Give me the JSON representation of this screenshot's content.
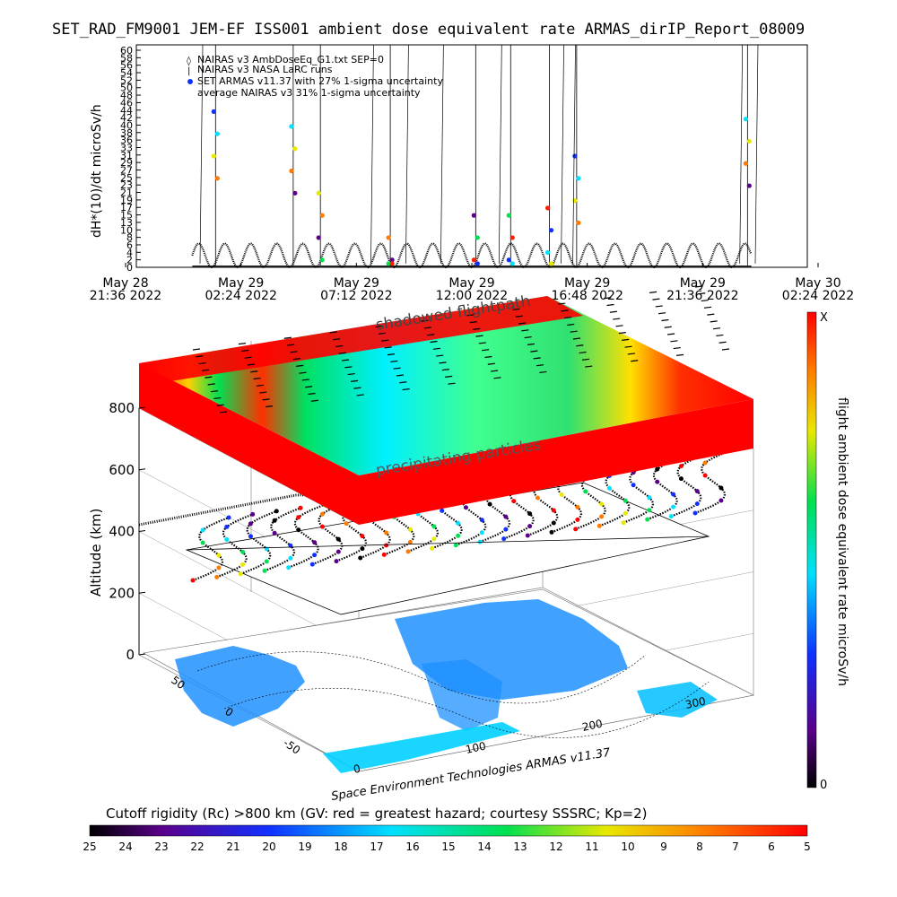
{
  "title": "SET_RAD_FM9001   JEM-EF ISS001 ambient dose equivalent rate ARMAS_dirIP_Report_08009",
  "timeseries": {
    "ylabel": "dH*(10)/dt microSv/h",
    "yticks": [
      "0",
      "2",
      "4",
      "6",
      "8",
      "10",
      "13",
      "15",
      "17",
      "19",
      "21",
      "23",
      "25",
      "27",
      "29",
      "31",
      "33",
      "36",
      "38",
      "40",
      "42",
      "44",
      "46",
      "48",
      "50",
      "52",
      "54",
      "56",
      "58",
      "60"
    ],
    "xticks": [
      {
        "l1": "May 28",
        "l2": "21:36 2022"
      },
      {
        "l1": "May 29",
        "l2": "02:24 2022"
      },
      {
        "l1": "May 29",
        "l2": "07:12 2022"
      },
      {
        "l1": "May 29",
        "l2": "12:00 2022"
      },
      {
        "l1": "May 29",
        "l2": "16:48 2022"
      },
      {
        "l1": "May 29",
        "l2": "21:36 2022"
      },
      {
        "l1": "May 30",
        "l2": "02:24 2022"
      }
    ],
    "legend": [
      "NAIRAS v3 AmbDoseEq_G1.txt SEP=0",
      "NAIRAS v3 NASA LaRC runs",
      "SET ARMAS v11.37 with 27% 1-sigma uncertainty",
      "average NAIRAS v3 31% 1-sigma uncertainty"
    ]
  },
  "panel3d": {
    "ylabel": "Altitude (km)",
    "zticks": [
      "0",
      "200",
      "400",
      "600",
      "800"
    ],
    "lat_ticks": [
      "50",
      "0",
      "-50"
    ],
    "lon_ticks": [
      "0",
      "100",
      "200",
      "300"
    ],
    "label_shadow": "shadowed flightpath",
    "label_precip": "precipitating particles",
    "credit": "Space Environment Technologies ARMAS v11.37"
  },
  "colorbar": {
    "label": "flight ambient dose equivalent rate microSv/h",
    "top": "X",
    "bottom": "0"
  },
  "cutoff": {
    "title": "Cutoff rigidity (Rc) >800 km (GV: red = greatest hazard; courtesy SSSRC; Kp=2)",
    "ticks": [
      "25",
      "24",
      "23",
      "22",
      "21",
      "20",
      "19",
      "18",
      "17",
      "16",
      "15",
      "14",
      "13",
      "12",
      "11",
      "10",
      "9",
      "8",
      "7",
      "6",
      "5"
    ]
  },
  "chart_data": {
    "type": "line",
    "title": "SET_RAD_FM9001   JEM-EF ISS001 ambient dose equivalent rate ARMAS_dirIP_Report_08009",
    "xlabel": "",
    "ylabel": "dH*(10)/dt microSv/h",
    "ylim": [
      0,
      60
    ],
    "xlim": [
      "2022-05-28 21:36",
      "2022-05-30 02:24"
    ],
    "series": [
      {
        "name": "NAIRAS v3 AmbDoseEq_G1.txt SEP=0",
        "x": [
          "2022-05-29 00:30",
          "2022-05-29 02:00",
          "2022-05-29 03:30",
          "2022-05-29 05:00",
          "2022-05-29 06:30",
          "2022-05-29 08:00",
          "2022-05-29 09:30",
          "2022-05-29 11:00",
          "2022-05-29 12:30",
          "2022-05-29 14:00",
          "2022-05-29 15:30",
          "2022-05-29 17:00",
          "2022-05-29 18:30",
          "2022-05-29 20:00",
          "2022-05-29 21:30",
          "2022-05-29 23:00"
        ],
        "y": [
          6,
          7,
          7,
          6,
          7,
          5,
          6,
          6,
          5,
          6,
          6,
          5,
          7,
          6,
          7,
          6
        ]
      },
      {
        "name": "SET ARMAS v11.37 with 27% 1-sigma uncertainty",
        "x": [
          "2022-05-29 01:00",
          "2022-05-29 04:20",
          "2022-05-29 05:30",
          "2022-05-29 08:30",
          "2022-05-29 12:10",
          "2022-05-29 13:40",
          "2022-05-29 15:20",
          "2022-05-29 16:30",
          "2022-05-29 23:50"
        ],
        "y": [
          42,
          38,
          20,
          8,
          14,
          14,
          16,
          30,
          40
        ]
      }
    ],
    "grid": false,
    "legend_position": "top-left"
  }
}
